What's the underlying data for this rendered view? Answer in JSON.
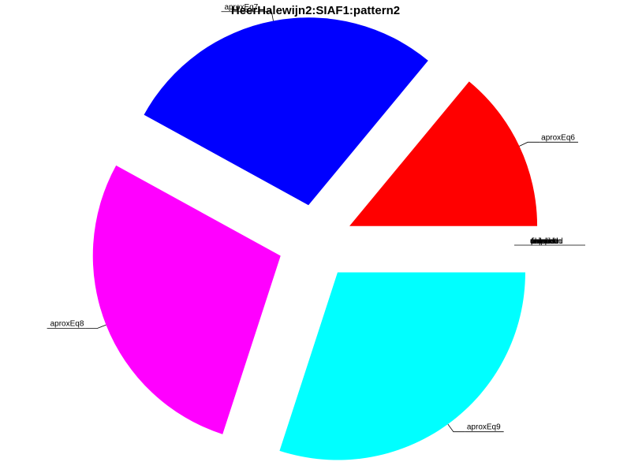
{
  "chart_data": {
    "type": "pie",
    "title": "HeerHalewijn2:SIAF1:pattern2",
    "slices": [
      {
        "label": "aproxEq6",
        "value": 14,
        "color": "#ff0000",
        "exploded": true
      },
      {
        "label": "aproxEq7",
        "value": 28,
        "color": "#0000ff",
        "exploded": true
      },
      {
        "label": "aproxEq8",
        "value": 28,
        "color": "#ff00ff",
        "exploded": true
      },
      {
        "label": "aproxEq9",
        "value": 30,
        "color": "#00ffff",
        "exploded": true
      }
    ],
    "overlapping_zero_labels": [
      "unproved",
      "timeout",
      "failed",
      "unknown",
      "proved",
      "invalid",
      "crashed",
      "skipped"
    ],
    "legend": "none"
  }
}
